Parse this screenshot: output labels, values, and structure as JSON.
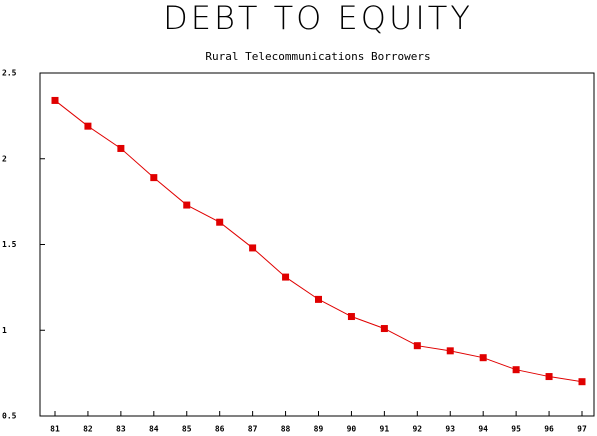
{
  "chart_data": {
    "type": "line",
    "title": "DEBT TO EQUITY",
    "subtitle": "Rural Telecommunications Borrowers",
    "categories": [
      "81",
      "82",
      "83",
      "84",
      "85",
      "86",
      "87",
      "88",
      "89",
      "90",
      "91",
      "92",
      "93",
      "94",
      "95",
      "96",
      "97"
    ],
    "series": [
      {
        "name": "Debt to Equity",
        "color": "#e00000",
        "values": [
          2.34,
          2.19,
          2.06,
          1.89,
          1.73,
          1.63,
          1.48,
          1.31,
          1.18,
          1.08,
          1.01,
          0.91,
          0.88,
          0.84,
          0.77,
          0.73,
          0.7
        ]
      }
    ],
    "ylim": [
      0.5,
      2.5
    ],
    "yticks": [
      0.5,
      1,
      1.5,
      2,
      2.5
    ],
    "grid": false
  }
}
